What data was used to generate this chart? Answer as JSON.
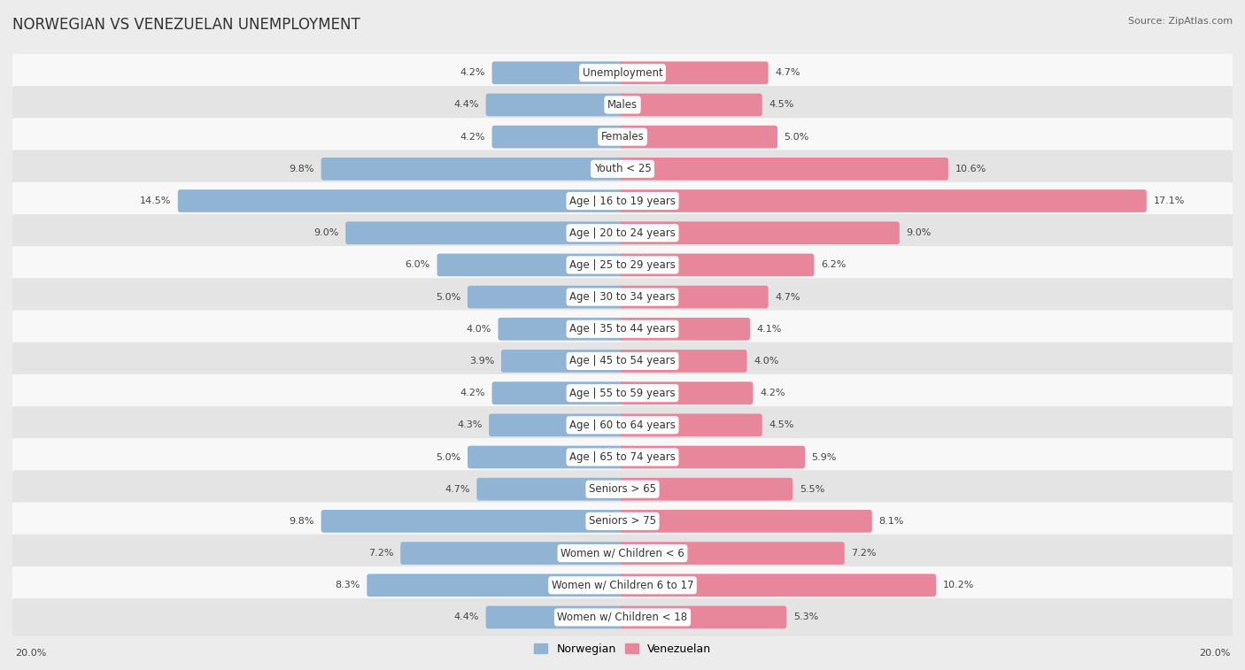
{
  "title": "NORWEGIAN VS VENEZUELAN UNEMPLOYMENT",
  "source": "Source: ZipAtlas.com",
  "categories": [
    "Unemployment",
    "Males",
    "Females",
    "Youth < 25",
    "Age | 16 to 19 years",
    "Age | 20 to 24 years",
    "Age | 25 to 29 years",
    "Age | 30 to 34 years",
    "Age | 35 to 44 years",
    "Age | 45 to 54 years",
    "Age | 55 to 59 years",
    "Age | 60 to 64 years",
    "Age | 65 to 74 years",
    "Seniors > 65",
    "Seniors > 75",
    "Women w/ Children < 6",
    "Women w/ Children 6 to 17",
    "Women w/ Children < 18"
  ],
  "norwegian": [
    4.2,
    4.4,
    4.2,
    9.8,
    14.5,
    9.0,
    6.0,
    5.0,
    4.0,
    3.9,
    4.2,
    4.3,
    5.0,
    4.7,
    9.8,
    7.2,
    8.3,
    4.4
  ],
  "venezuelan": [
    4.7,
    4.5,
    5.0,
    10.6,
    17.1,
    9.0,
    6.2,
    4.7,
    4.1,
    4.0,
    4.2,
    4.5,
    5.9,
    5.5,
    8.1,
    7.2,
    10.2,
    5.3
  ],
  "norwegian_color": "#92b4d4",
  "venezuelan_color": "#e8879c",
  "background_color": "#ececec",
  "row_bg_even": "#f8f8f8",
  "row_bg_odd": "#e4e4e4",
  "max_val": 20.0,
  "label_fontsize": 8.5,
  "value_fontsize": 8.0,
  "title_fontsize": 12,
  "source_fontsize": 8,
  "legend_fontsize": 9
}
